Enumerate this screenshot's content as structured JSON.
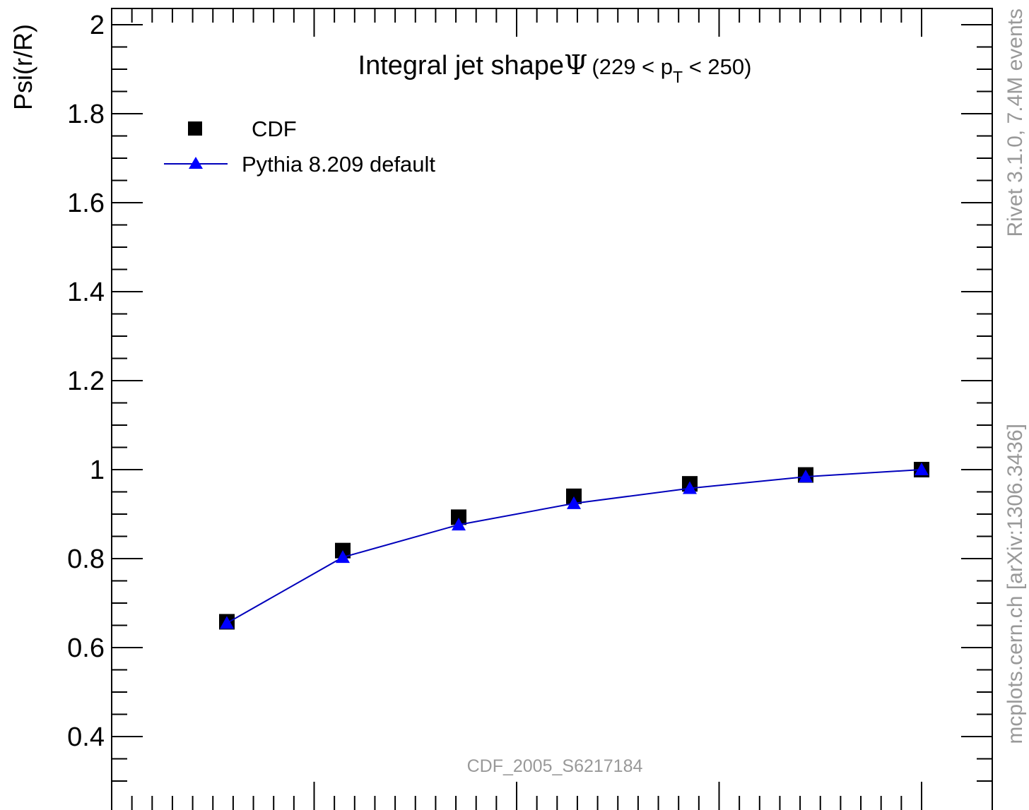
{
  "chart_data": {
    "type": "line",
    "title": "Integral jet shape",
    "title_symbol": "Ψ",
    "title_range": {
      "open": "(229 < p",
      "subscript": "T",
      "close": " < 250)"
    },
    "ylabel": "Psi(r/R)",
    "xlabel": "",
    "ylim": [
      0.3,
      2.04
    ],
    "xlim": [
      0.0,
      1.0
    ],
    "y_ticks": [
      "0.4",
      "0.6",
      "0.8",
      "1",
      "1.2",
      "1.4",
      "1.6",
      "1.8",
      "2"
    ],
    "grid": false,
    "legend_placement": "top-left",
    "series": [
      {
        "name": "CDF",
        "marker": "square",
        "color": "#000000",
        "x": [
          0.1,
          0.2,
          0.3,
          0.4,
          0.5,
          0.6,
          0.7
        ],
        "values": [
          0.658,
          0.818,
          0.893,
          0.94,
          0.968,
          0.988,
          1.0
        ]
      },
      {
        "name": "Pythia 8.209 default",
        "marker": "triangle",
        "color": "#0000ff",
        "x": [
          0.1,
          0.2,
          0.3,
          0.4,
          0.5,
          0.6,
          0.7
        ],
        "values": [
          0.655,
          0.803,
          0.876,
          0.924,
          0.958,
          0.984,
          1.0
        ]
      }
    ],
    "analysis_label": "CDF_2005_S6217184",
    "side_label_top": "Rivet 3.1.0,  7.4M events",
    "side_label_bottom": "mcplots.cern.ch [arXiv:1306.3436]"
  }
}
